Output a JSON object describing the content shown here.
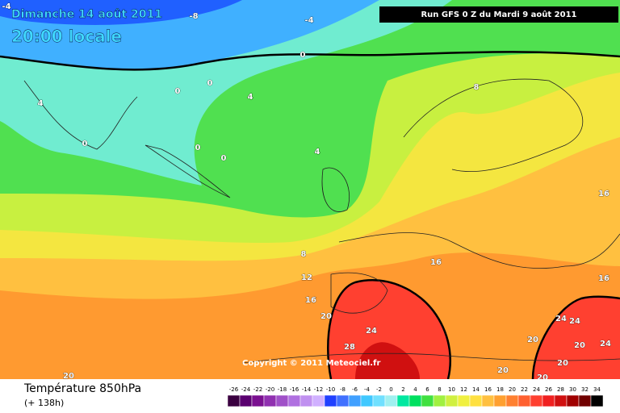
{
  "header": {
    "date": "Dimanche 14 août 2011",
    "time": "20:00 locale",
    "run": "Run GFS 0 Z du Mardi 9 août 2011"
  },
  "copyright": "Copyright © 2011 Meteociel.fr",
  "footer": {
    "title": "Température 850hPa",
    "lead": "(+ 138h)"
  },
  "scale": {
    "labels": [
      -26,
      -24,
      -22,
      -20,
      -18,
      -16,
      -14,
      -12,
      -10,
      -8,
      -6,
      -4,
      -2,
      0,
      2,
      4,
      6,
      8,
      10,
      12,
      14,
      16,
      18,
      20,
      22,
      24,
      26,
      28,
      30,
      32,
      34
    ],
    "colors": [
      "#3a0040",
      "#5a0070",
      "#7a1090",
      "#9030b0",
      "#a050c8",
      "#b070e0",
      "#c090f0",
      "#d0b0ff",
      "#2040ff",
      "#4070ff",
      "#40a0ff",
      "#40c8ff",
      "#70e0ff",
      "#a0f0f0",
      "#00e8a0",
      "#00e060",
      "#40e040",
      "#a0f040",
      "#d0f040",
      "#f0f040",
      "#ffe040",
      "#ffc040",
      "#ffa030",
      "#ff8030",
      "#ff6030",
      "#ff4030",
      "#f02020",
      "#d01010",
      "#a00000",
      "#700000",
      "#000000"
    ]
  },
  "contour_labels": [
    "-4",
    "-8",
    "-4",
    "0",
    "0",
    "0",
    "4",
    "4",
    "0",
    "0",
    "0",
    "4",
    "8",
    "16",
    "8",
    "12",
    "16",
    "16",
    "16",
    "20",
    "24",
    "24",
    "24",
    "28",
    "20",
    "20",
    "24",
    "20",
    "20",
    "20",
    "20"
  ]
}
